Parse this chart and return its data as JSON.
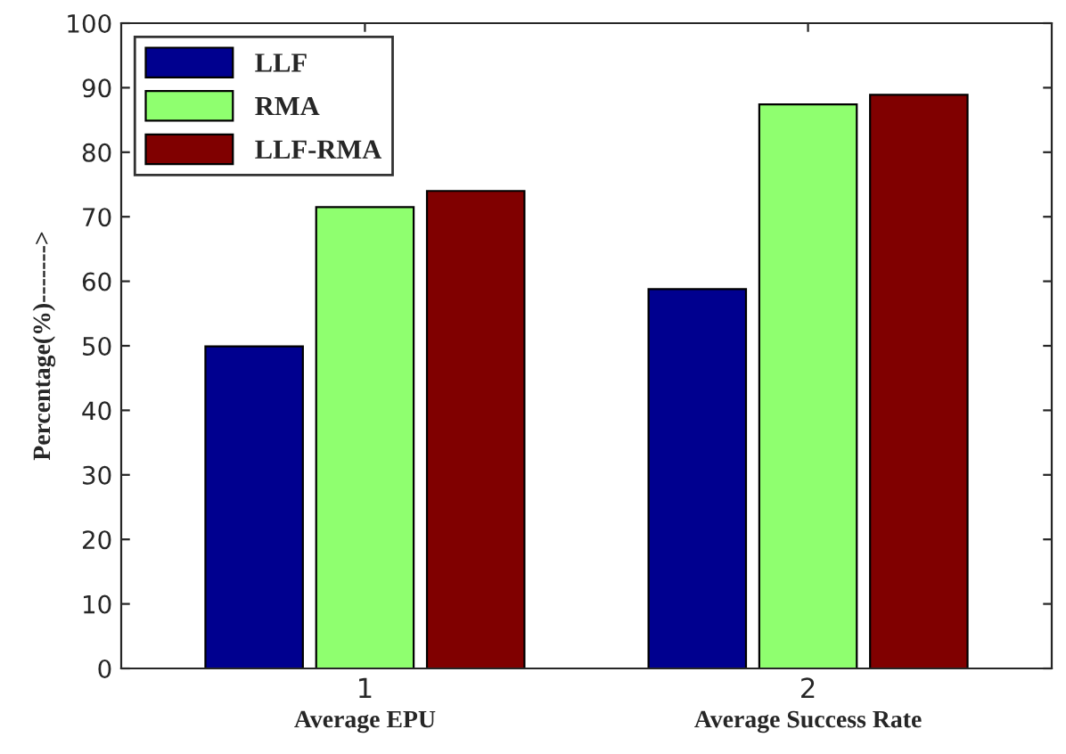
{
  "chart_data": {
    "type": "bar",
    "ylabel": "Percentage(%)------->",
    "categories": [
      "1",
      "2"
    ],
    "series": [
      {
        "name": "LLF",
        "color": "#00008f",
        "values": [
          49.9,
          58.8
        ]
      },
      {
        "name": "RMA",
        "color": "#8fff6f",
        "values": [
          71.5,
          87.4
        ]
      },
      {
        "name": "LLF-RMA",
        "color": "#800000",
        "values": [
          74.0,
          88.9
        ]
      }
    ],
    "annotations": [
      "Average EPU",
      "Average Success Rate"
    ],
    "ylim": [
      0,
      100
    ],
    "yticks": [
      0,
      10,
      20,
      30,
      40,
      50,
      60,
      70,
      80,
      90,
      100
    ],
    "grid": false,
    "legend": "top left"
  }
}
